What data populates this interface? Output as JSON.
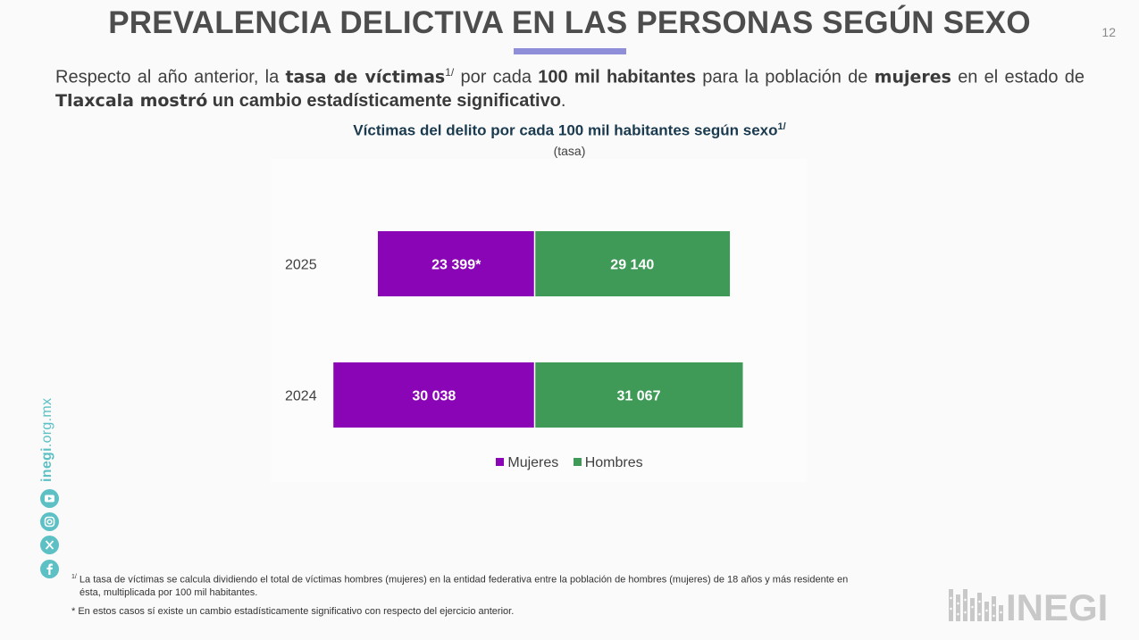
{
  "header": {
    "title": "PREVALENCIA DELICTIVA EN LAS PERSONAS SEGÚN SEXO",
    "page_number": "12"
  },
  "intro": {
    "p1": "Respecto al año anterior, la ",
    "b1": "tasa de víctimas",
    "sup1": "1/",
    "p2": " por cada ",
    "b2": "100 mil habitantes",
    "p3": " para la población de ",
    "b3": "mujeres",
    "p4": " en el estado de ",
    "b4": "Tlaxcala",
    "b5": " mostró",
    "b6": " un cambio estadísticamente significativo",
    "p5": "."
  },
  "chart_data": {
    "type": "bar",
    "orientation": "horizontal-stacked",
    "title": "Víctimas del delito por cada 100 mil habitantes según sexo",
    "title_sup": "1/",
    "subtitle": "(tasa)",
    "categories": [
      "2025",
      "2024"
    ],
    "series": [
      {
        "name": "Mujeres",
        "color": "#8a05b5",
        "values": [
          23399,
          30038
        ],
        "labels": [
          "23 399*",
          "30 038"
        ]
      },
      {
        "name": "Hombres",
        "color": "#3f9a57",
        "values": [
          29140,
          31067
        ],
        "labels": [
          "29 140",
          "31 067"
        ]
      }
    ],
    "legend": "bottom-center",
    "grid": false
  },
  "social": {
    "site_bold": "inegi",
    "site_rest": ".org.mx",
    "icons": [
      "youtube-icon",
      "instagram-icon",
      "x-icon",
      "facebook-icon"
    ]
  },
  "notes": {
    "n1_sup": "1/",
    "n1_line1": " La tasa de víctimas se calcula dividiendo el total de víctimas hombres (mujeres) en la entidad federativa entre la población de hombres (mujeres) de 18 años y más residente en",
    "n1_line2": "ésta, multiplicada por 100 mil habitantes.",
    "n2": "* En estos casos sí existe un cambio estadísticamente significativo con respecto del ejercicio anterior."
  },
  "logo": {
    "text": "INEGI",
    "color": "#c8c8c8"
  }
}
